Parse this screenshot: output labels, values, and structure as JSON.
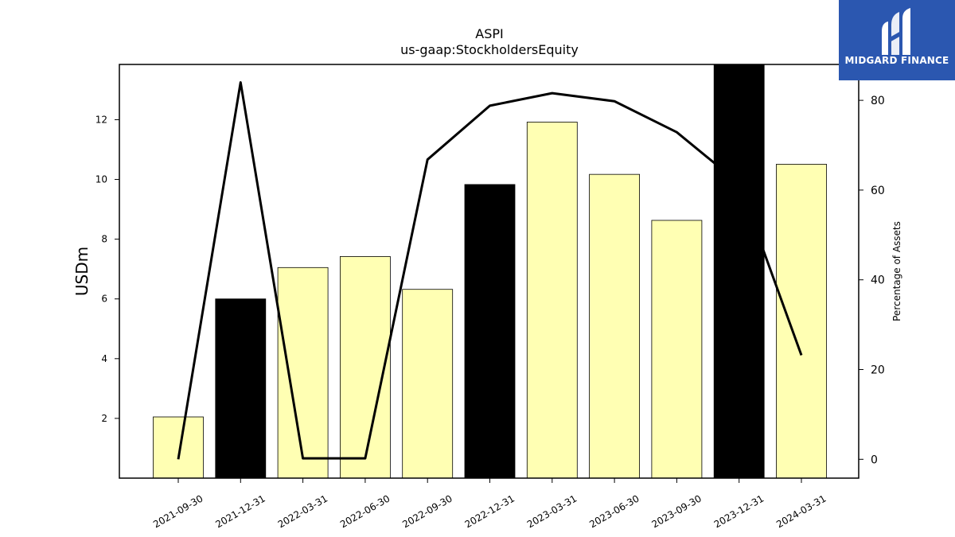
{
  "brand": {
    "name": "MIDGARD FINANCE",
    "logo_icon": "midgard-logo-icon",
    "color": "#2b57b0"
  },
  "chart_data": {
    "type": "bar",
    "title": "ASPI",
    "subtitle": "us-gaap:StockholdersEquity",
    "ylabel": "USDm",
    "y2label": "Percentage of Assets",
    "categories": [
      "2021-09-30",
      "2021-12-31",
      "2022-03-31",
      "2022-06-30",
      "2022-09-30",
      "2022-12-31",
      "2023-03-31",
      "2023-06-30",
      "2023-09-30",
      "2023-12-31",
      "2024-03-31"
    ],
    "series": [
      {
        "type": "bar",
        "axis": "left",
        "values": [
          2.05,
          6.0,
          7.05,
          7.42,
          6.32,
          9.83,
          11.92,
          10.17,
          8.63,
          13.85,
          10.51
        ],
        "colors": [
          "#ffffb3",
          "#000000",
          "#ffffb3",
          "#ffffb3",
          "#ffffb3",
          "#000000",
          "#ffffb3",
          "#ffffb3",
          "#ffffb3",
          "#000000",
          "#ffffb3"
        ]
      },
      {
        "type": "line",
        "axis": "right",
        "color": "#000000",
        "values": [
          0.0,
          84.0,
          0.2,
          0.2,
          66.8,
          78.8,
          81.6,
          79.8,
          72.9,
          61.5,
          23.2
        ]
      }
    ],
    "ylim": [
      0,
      13.85
    ],
    "yticks": [
      2,
      4,
      6,
      8,
      10,
      12
    ],
    "y2lim": [
      -4.2,
      88.0
    ],
    "y2ticks": [
      0,
      20,
      40,
      60,
      80
    ],
    "grid": false,
    "legend": "none"
  }
}
